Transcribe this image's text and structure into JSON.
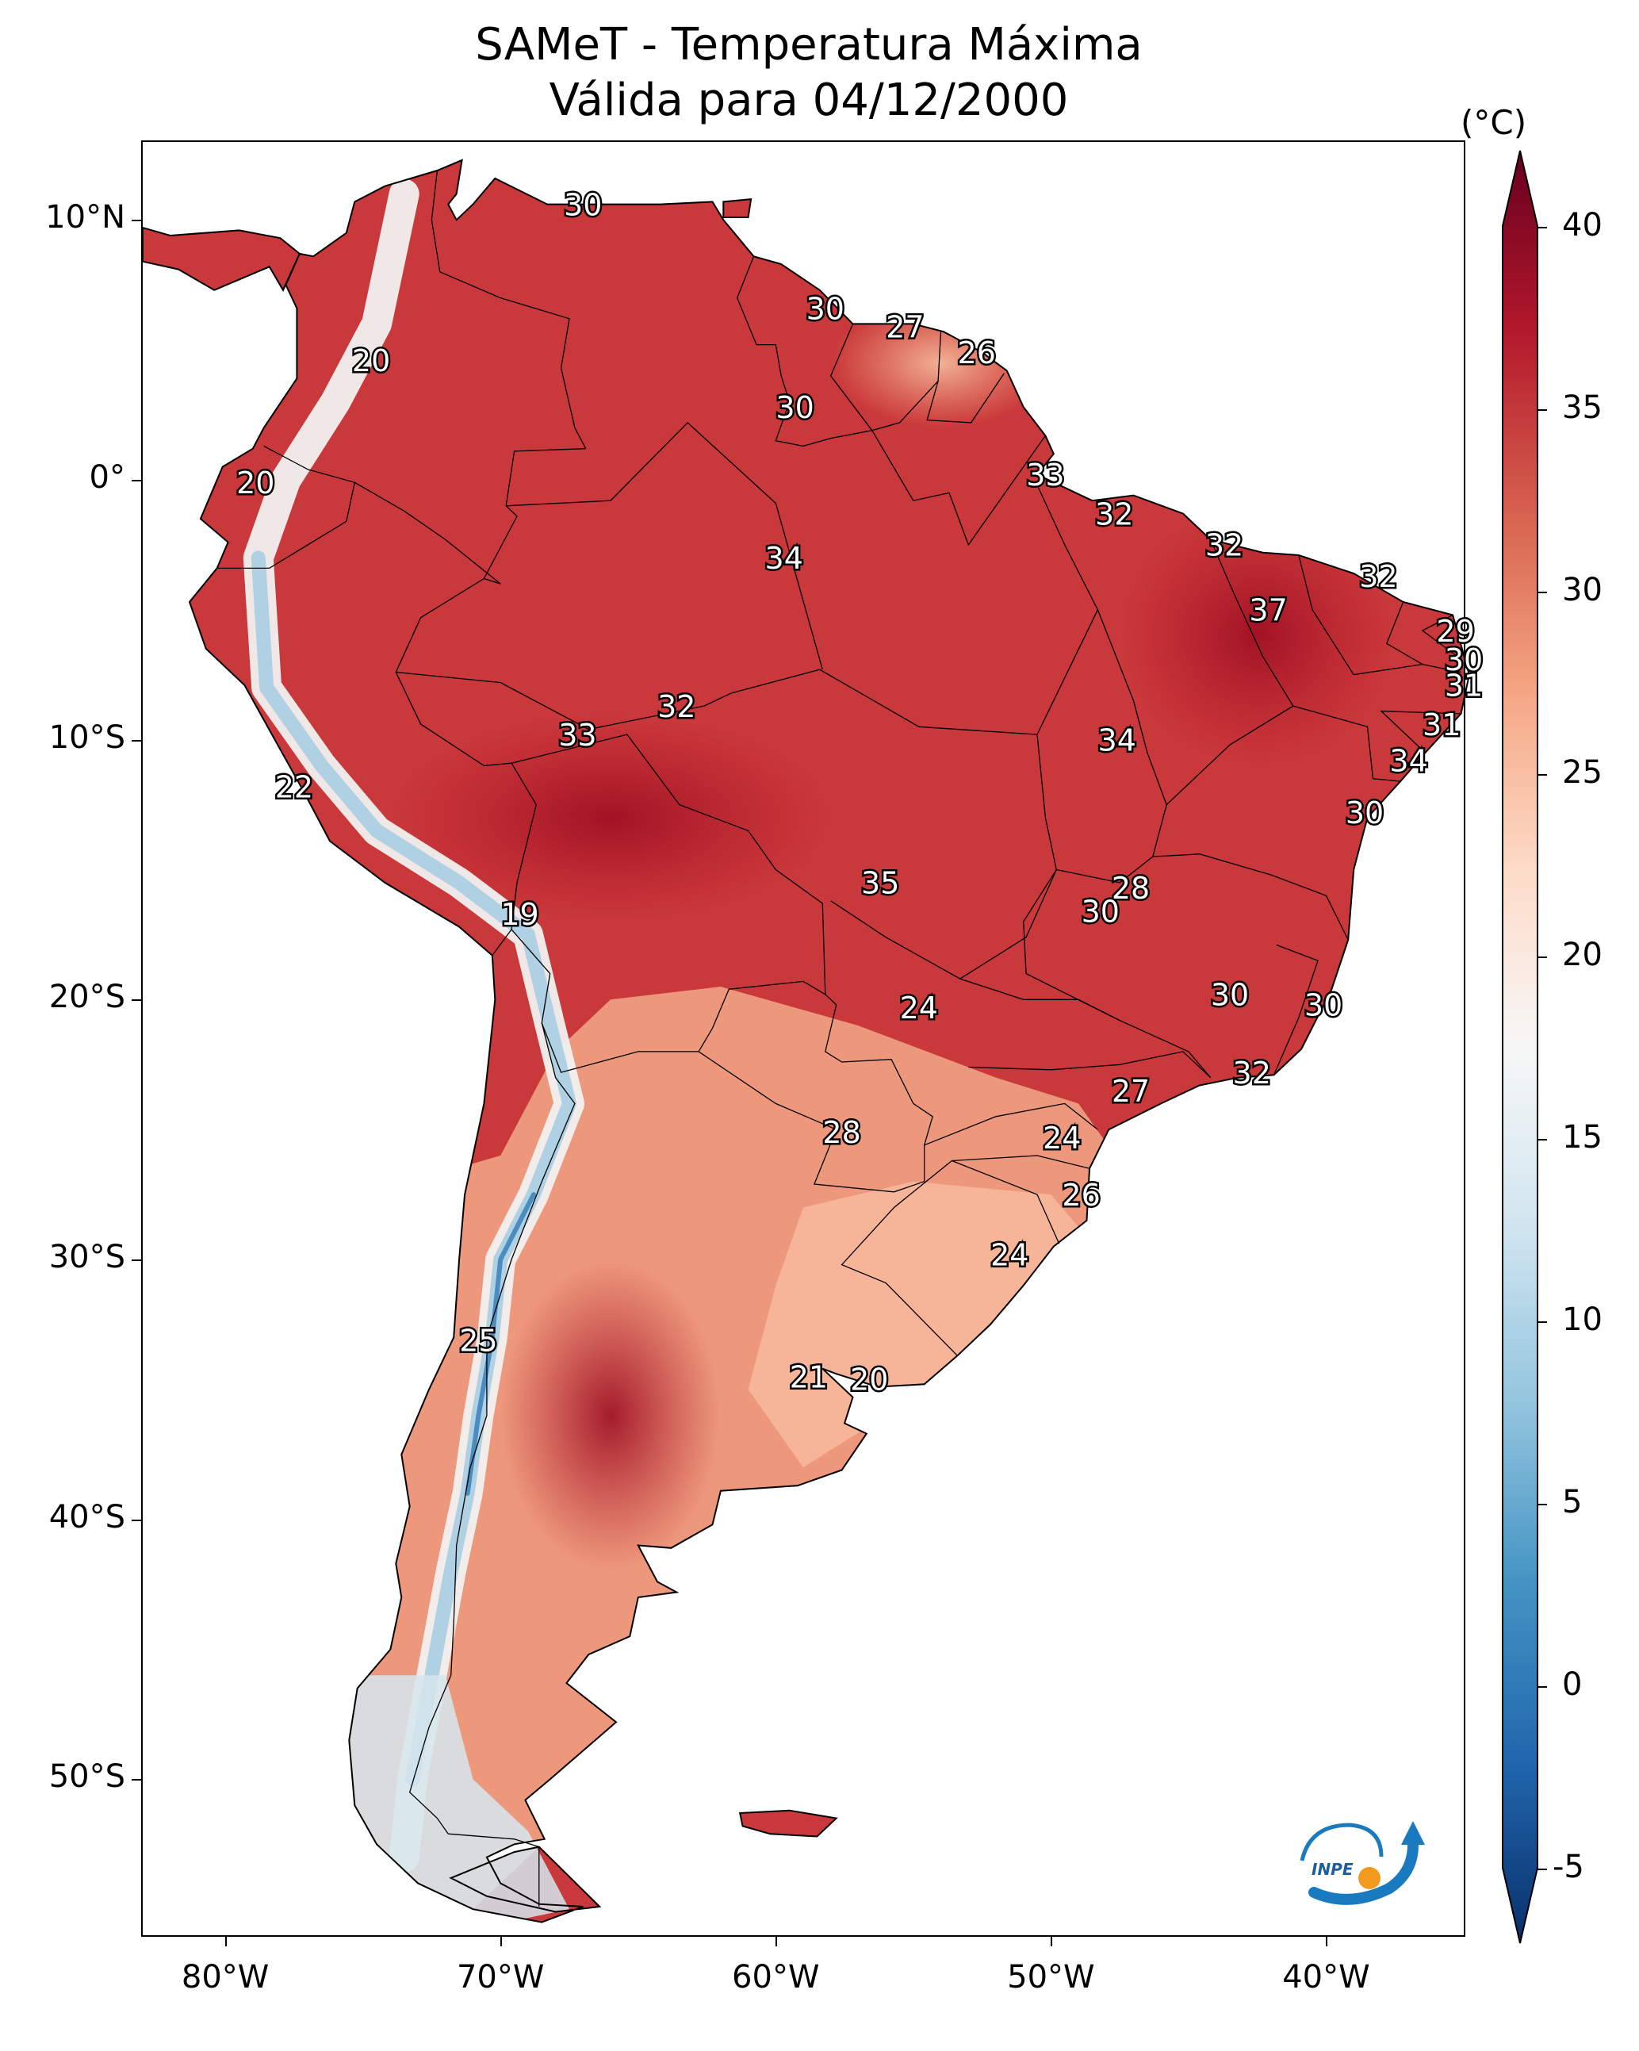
{
  "title_line1": "SAMeT - Temperatura Máxima",
  "title_line2": "Válida para 04/12/2000",
  "lat_ticks": [
    "10°N",
    "0°",
    "10°S",
    "20°S",
    "30°S",
    "40°S",
    "50°S"
  ],
  "lon_ticks": [
    "80°W",
    "70°W",
    "60°W",
    "50°W",
    "40°W"
  ],
  "extent": {
    "lon_min": -83,
    "lon_max": -35,
    "lat_min": -56,
    "lat_max": 13
  },
  "colorbar": {
    "unit": "(°C)",
    "vmin": -5,
    "vmax": 40,
    "ticks": [
      "-5",
      "0",
      "5",
      "10",
      "15",
      "20",
      "25",
      "30",
      "35",
      "40"
    ],
    "colormap": "RdBu_r",
    "colors": [
      "#08306b",
      "#2166ac",
      "#4393c3",
      "#92c5de",
      "#d1e5f0",
      "#f7f7f7",
      "#fddbc7",
      "#f4a582",
      "#d6604d",
      "#b2182b",
      "#67001f"
    ]
  },
  "logo_text": "INPE",
  "map_labels": [
    {
      "text": "30",
      "lon": -67,
      "lat": 10.5
    },
    {
      "text": "30",
      "lon": -58.2,
      "lat": 6.5
    },
    {
      "text": "27",
      "lon": -55.3,
      "lat": 5.8
    },
    {
      "text": "26",
      "lon": -52.7,
      "lat": 4.8
    },
    {
      "text": "20",
      "lon": -74.7,
      "lat": 4.5
    },
    {
      "text": "30",
      "lon": -59.3,
      "lat": 2.7
    },
    {
      "text": "20",
      "lon": -78.9,
      "lat": -0.2
    },
    {
      "text": "33",
      "lon": -50.2,
      "lat": 0.1
    },
    {
      "text": "32",
      "lon": -47.7,
      "lat": -1.4
    },
    {
      "text": "32",
      "lon": -43.7,
      "lat": -2.6
    },
    {
      "text": "34",
      "lon": -59.7,
      "lat": -3.1
    },
    {
      "text": "32",
      "lon": -38.1,
      "lat": -3.8
    },
    {
      "text": "37",
      "lon": -42.1,
      "lat": -5.1
    },
    {
      "text": "29",
      "lon": -35.3,
      "lat": -5.9
    },
    {
      "text": "30",
      "lon": -35.0,
      "lat": -7.0
    },
    {
      "text": "31",
      "lon": -35.0,
      "lat": -8.0
    },
    {
      "text": "32",
      "lon": -63.6,
      "lat": -8.8
    },
    {
      "text": "33",
      "lon": -67.2,
      "lat": -9.9
    },
    {
      "text": "31",
      "lon": -35.8,
      "lat": -9.5
    },
    {
      "text": "34",
      "lon": -47.6,
      "lat": -10.1
    },
    {
      "text": "34",
      "lon": -37.0,
      "lat": -10.9
    },
    {
      "text": "22",
      "lon": -77.5,
      "lat": -11.9
    },
    {
      "text": "30",
      "lon": -38.6,
      "lat": -12.9
    },
    {
      "text": "35",
      "lon": -56.2,
      "lat": -15.6
    },
    {
      "text": "28",
      "lon": -47.1,
      "lat": -15.8
    },
    {
      "text": "30",
      "lon": -48.2,
      "lat": -16.7
    },
    {
      "text": "19",
      "lon": -69.3,
      "lat": -16.8
    },
    {
      "text": "30",
      "lon": -43.5,
      "lat": -19.9
    },
    {
      "text": "24",
      "lon": -54.8,
      "lat": -20.4
    },
    {
      "text": "30",
      "lon": -40.1,
      "lat": -20.3
    },
    {
      "text": "32",
      "lon": -42.7,
      "lat": -22.9
    },
    {
      "text": "27",
      "lon": -47.1,
      "lat": -23.6
    },
    {
      "text": "24",
      "lon": -49.6,
      "lat": -25.4
    },
    {
      "text": "28",
      "lon": -57.6,
      "lat": -25.2
    },
    {
      "text": "26",
      "lon": -48.9,
      "lat": -27.6
    },
    {
      "text": "24",
      "lon": -51.5,
      "lat": -29.9
    },
    {
      "text": "25",
      "lon": -70.8,
      "lat": -33.2
    },
    {
      "text": "21",
      "lon": -58.8,
      "lat": -34.6
    },
    {
      "text": "20",
      "lon": -56.6,
      "lat": -34.7
    }
  ]
}
